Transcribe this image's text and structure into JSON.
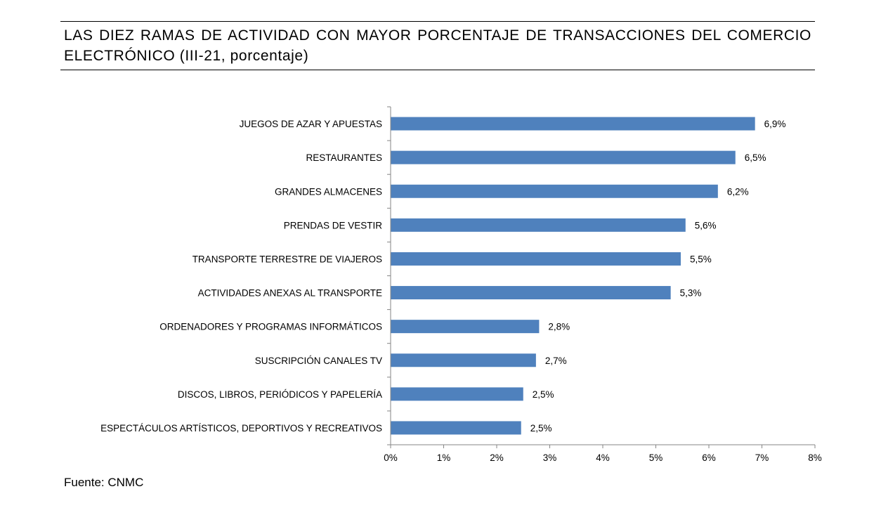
{
  "chart_data": {
    "type": "bar",
    "orientation": "horizontal",
    "title": "LAS DIEZ RAMAS DE ACTIVIDAD CON MAYOR PORCENTAJE DE TRANSACCIONES DEL COMERCIO ELECTRÓNICO (III-21, porcentaje)",
    "categories": [
      "JUEGOS DE AZAR Y APUESTAS",
      "RESTAURANTES",
      "GRANDES ALMACENES",
      "PRENDAS DE VESTIR",
      "TRANSPORTE TERRESTRE DE VIAJEROS",
      "ACTIVIDADES ANEXAS AL TRANSPORTE",
      "ORDENADORES Y PROGRAMAS INFORMÁTICOS",
      "SUSCRIPCIÓN CANALES TV",
      "DISCOS, LIBROS, PERIÓDICOS Y PAPELERÍA",
      "ESPECTÁCULOS ARTÍSTICOS, DEPORTIVOS Y RECREATIVOS"
    ],
    "values": [
      6.87,
      6.5,
      6.17,
      5.56,
      5.47,
      5.28,
      2.8,
      2.74,
      2.5,
      2.46
    ],
    "data_labels": [
      "6,9%",
      "6,5%",
      "6,2%",
      "5,6%",
      "5,5%",
      "5,3%",
      "2,8%",
      "2,7%",
      "2,5%",
      "2,5%"
    ],
    "xlim": [
      0,
      8
    ],
    "xticks": [
      "0%",
      "1%",
      "2%",
      "3%",
      "4%",
      "5%",
      "6%",
      "7%",
      "8%"
    ],
    "bar_color": "#4f81bd",
    "grid": false,
    "legend": "none"
  },
  "source": "Fuente: CNMC"
}
